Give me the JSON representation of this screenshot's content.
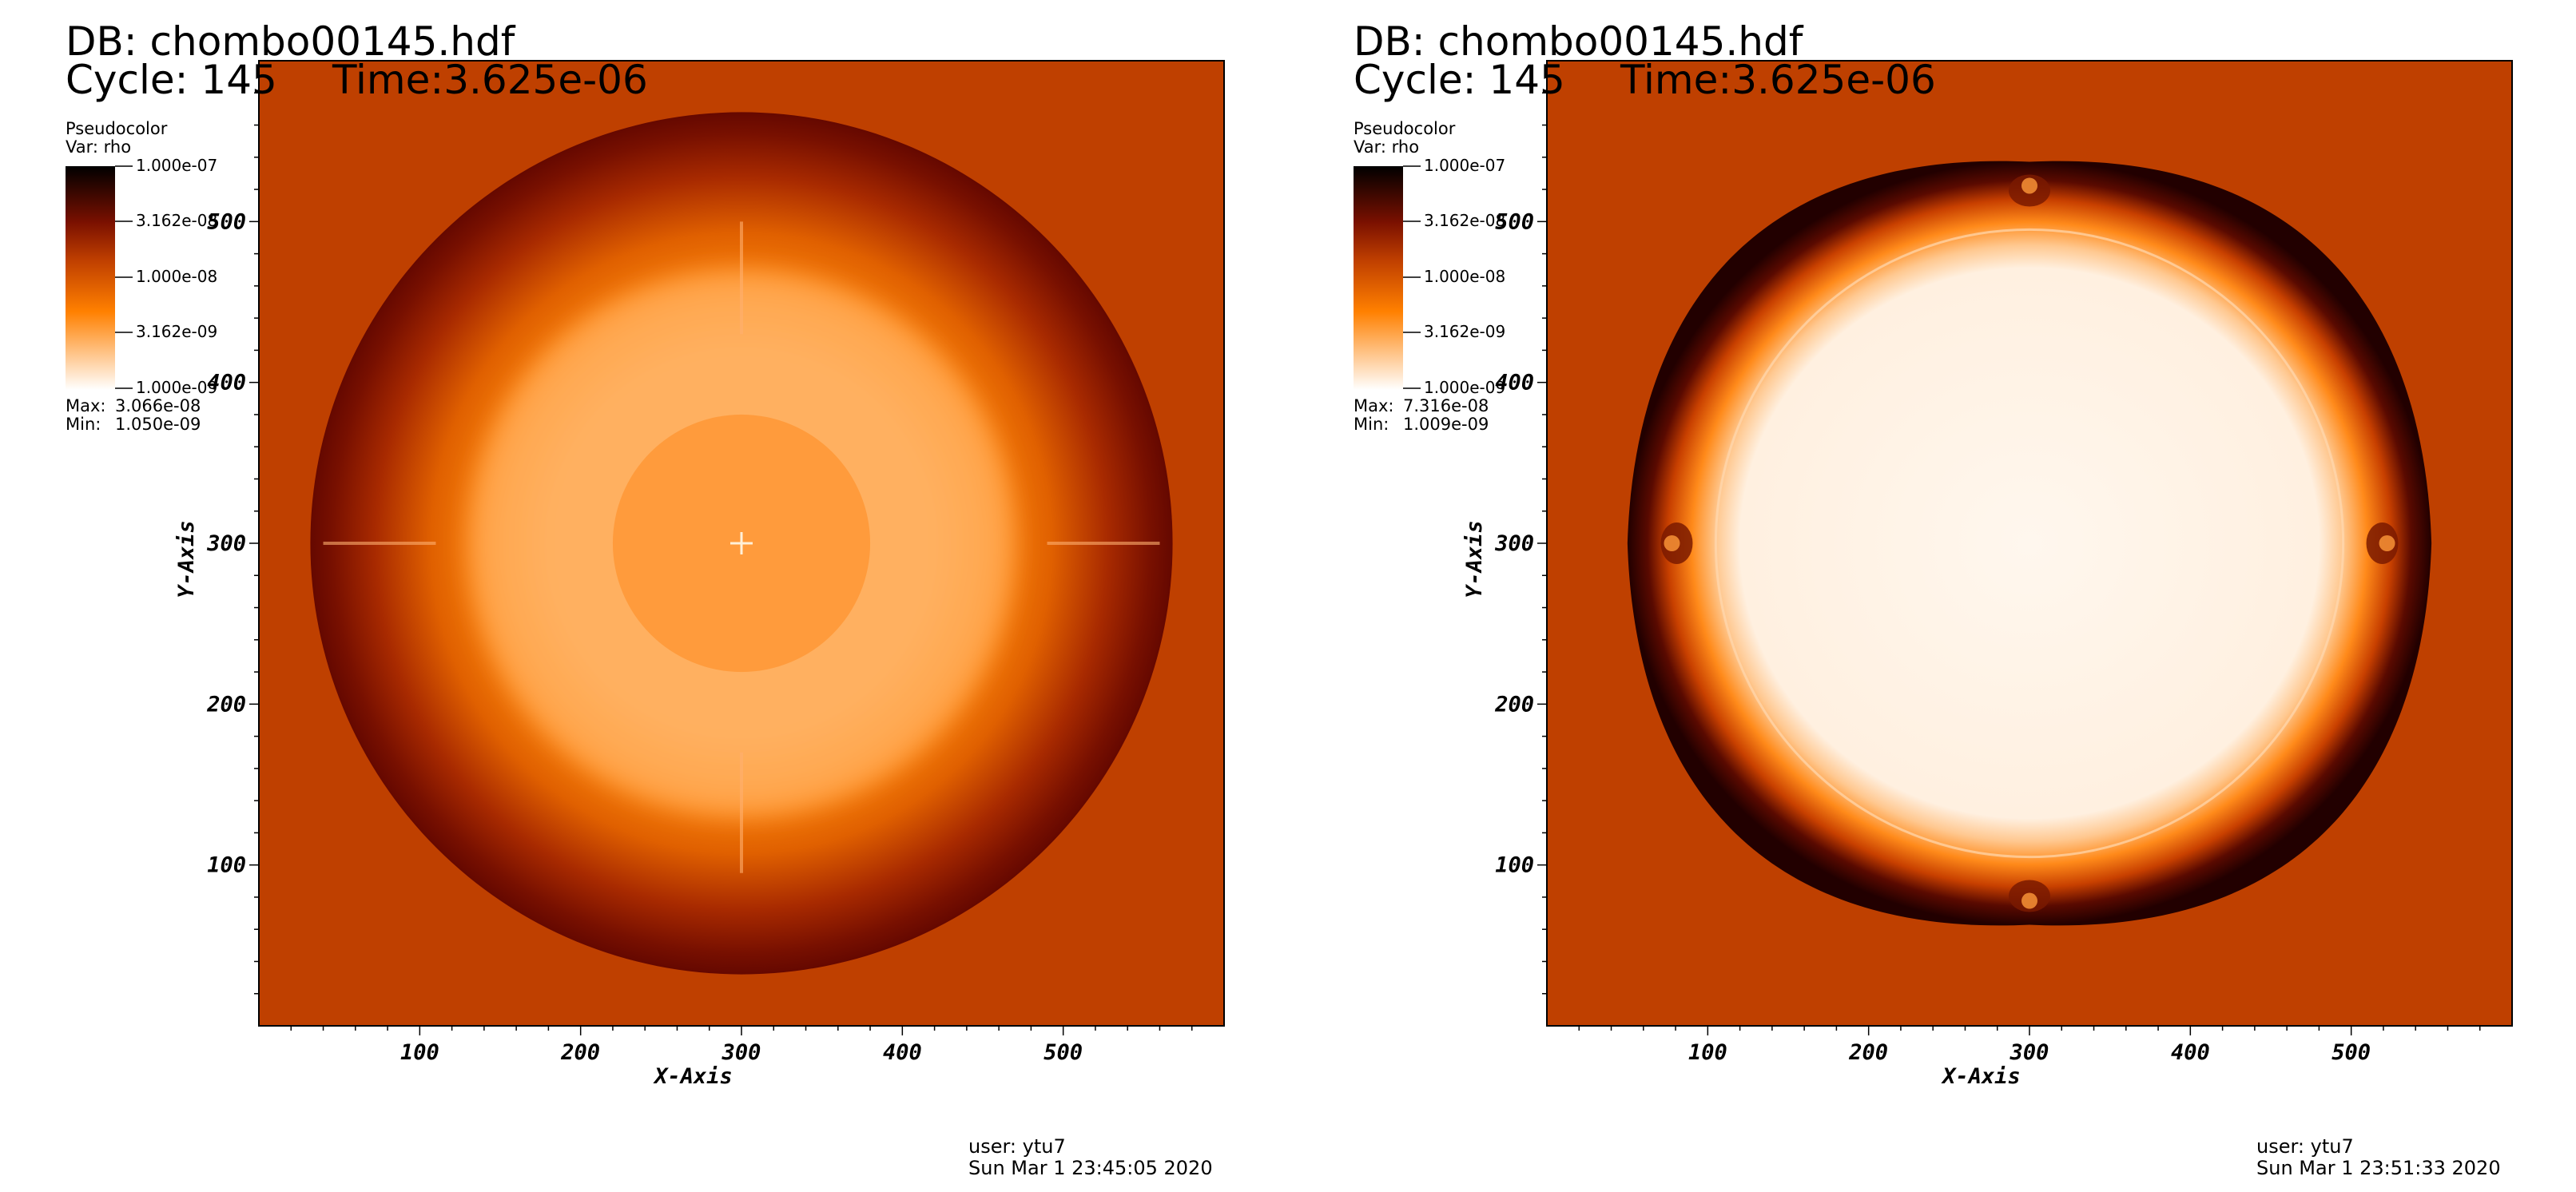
{
  "panels": [
    {
      "db": "DB: chombo00145.hdf",
      "cycle": "Cycle: 145",
      "time": "Time:3.625e-06",
      "legend": {
        "title": "Pseudocolor",
        "var": "Var: rho",
        "ticks": [
          "1.000e-07",
          "3.162e-08",
          "1.000e-08",
          "3.162e-09",
          "1.000e-09"
        ],
        "max_label": "Max:",
        "max_value": "3.066e-08",
        "min_label": "Min:",
        "min_value": "1.050e-09"
      },
      "footer": {
        "user": "user: ytu7",
        "date": "Sun Mar  1 23:45:05 2020"
      },
      "chart_data": {
        "type": "heatmap",
        "variable": "rho",
        "colormap": [
          "#ffffff",
          "#ff8000",
          "#bf3f00",
          "#7a1000",
          "#000000"
        ],
        "color_scale": "log",
        "color_range": [
          1e-09,
          1e-07
        ],
        "data_max": 3.066e-08,
        "data_min": 1.05e-09,
        "xlabel": "X-Axis",
        "ylabel": "Y-Axis",
        "xlim": [
          0,
          600
        ],
        "ylim": [
          0,
          600
        ],
        "xticks": [
          100,
          200,
          300,
          400,
          500
        ],
        "yticks": [
          100,
          200,
          300,
          400,
          500
        ],
        "background_color": "#bf4000",
        "structure": {
          "center": [
            300,
            300
          ],
          "shell_outer_radius": 268,
          "core_radius": 80,
          "light_ring_inner_radius": 80,
          "light_ring_outer_radius": 170
        }
      }
    },
    {
      "db": "DB: chombo00145.hdf",
      "cycle": "Cycle: 145",
      "time": "Time:3.625e-06",
      "legend": {
        "title": "Pseudocolor",
        "var": "Var: rho",
        "ticks": [
          "1.000e-07",
          "3.162e-08",
          "1.000e-08",
          "3.162e-09",
          "1.000e-09"
        ],
        "max_label": "Max:",
        "max_value": "7.316e-08",
        "min_label": "Min:",
        "min_value": "1.009e-09"
      },
      "footer": {
        "user": "user: ytu7",
        "date": "Sun Mar  1 23:51:33 2020"
      },
      "chart_data": {
        "type": "heatmap",
        "variable": "rho",
        "colormap": [
          "#ffffff",
          "#ff8000",
          "#bf3f00",
          "#7a1000",
          "#000000"
        ],
        "color_scale": "log",
        "color_range": [
          1e-09,
          1e-07
        ],
        "data_max": 7.316e-08,
        "data_min": 1.009e-09,
        "xlabel": "X-Axis",
        "ylabel": "Y-Axis",
        "xlim": [
          0,
          600
        ],
        "ylim": [
          0,
          600
        ],
        "xticks": [
          100,
          200,
          300,
          400,
          500
        ],
        "yticks": [
          100,
          200,
          300,
          400,
          500
        ],
        "background_color": "#bf4000",
        "structure": {
          "center": [
            300,
            300
          ],
          "shell_outer_radius": 255,
          "bright_interior_radius": 195,
          "shape": "slightly square-lobed shell with four instability fingers at 0, 90, 180, 270 degrees"
        }
      }
    }
  ]
}
